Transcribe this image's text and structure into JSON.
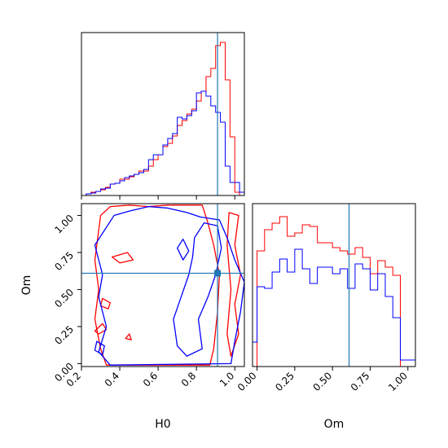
{
  "chart_data": {
    "type": "corner",
    "variables": [
      "H0",
      "Om"
    ],
    "truths": {
      "H0": 0.91,
      "Om": 0.61
    },
    "colors": {
      "run_a": "#ff0000",
      "run_b": "#0000ff",
      "truth": "#1f77b4"
    },
    "panels": [
      {
        "id": "hist_H0",
        "type": "histogram",
        "xlim": [
          0.2,
          1.05
        ],
        "ylim": [
          0,
          1
        ],
        "bin_edges": [
          0.225,
          0.25,
          0.275,
          0.3,
          0.325,
          0.35,
          0.375,
          0.4,
          0.425,
          0.45,
          0.475,
          0.5,
          0.525,
          0.55,
          0.575,
          0.6,
          0.625,
          0.65,
          0.675,
          0.7,
          0.725,
          0.75,
          0.775,
          0.8,
          0.825,
          0.85,
          0.875,
          0.9,
          0.925,
          0.95,
          0.975,
          1.0,
          1.025,
          1.05
        ],
        "series": [
          {
            "name": "run_a",
            "color": "#ff0000",
            "counts": [
              0.01,
              0.02,
              0.025,
              0.035,
              0.05,
              0.07,
              0.075,
              0.1,
              0.1,
              0.115,
              0.13,
              0.15,
              0.15,
              0.18,
              0.22,
              0.25,
              0.3,
              0.32,
              0.365,
              0.43,
              0.46,
              0.5,
              0.53,
              0.58,
              0.64,
              0.73,
              0.78,
              0.92,
              0.94,
              0.71,
              0.36,
              0.02,
              0.0
            ]
          },
          {
            "name": "run_b",
            "color": "#0000ff",
            "counts": [
              0.01,
              0.015,
              0.025,
              0.04,
              0.045,
              0.07,
              0.075,
              0.09,
              0.11,
              0.12,
              0.13,
              0.14,
              0.16,
              0.22,
              0.25,
              0.25,
              0.31,
              0.35,
              0.38,
              0.48,
              0.47,
              0.49,
              0.52,
              0.63,
              0.64,
              0.61,
              0.55,
              0.51,
              0.45,
              0.18,
              0.08,
              0.08,
              0.02
            ]
          }
        ]
      },
      {
        "id": "contour_H0_Om",
        "type": "contour",
        "xlabel": "H0",
        "ylabel": "Om",
        "xlim": [
          0.2,
          1.05
        ],
        "ylim": [
          -0.02,
          1.08
        ],
        "xticks": [
          "0.2",
          "0.4",
          "0.6",
          "0.8",
          "1.0"
        ],
        "yticks": [
          "0.00",
          "0.25",
          "0.50",
          "0.75",
          "1.00"
        ],
        "series": [
          {
            "name": "run_a",
            "color": "#ff0000",
            "contours": [
              [
                [
                  0.3,
                  1.0
                ],
                [
                  0.35,
                  1.06
                ],
                [
                  0.45,
                  1.07
                ],
                [
                  0.55,
                  1.06
                ],
                [
                  0.65,
                  1.07
                ],
                [
                  0.83,
                  1.07
                ],
                [
                  0.86,
                  0.95
                ],
                [
                  0.89,
                  0.8
                ],
                [
                  0.92,
                  0.6
                ],
                [
                  0.91,
                  0.35
                ],
                [
                  0.89,
                  0.1
                ],
                [
                  0.87,
                  -0.01
                ],
                [
                  0.33,
                  -0.01
                ],
                [
                  0.3,
                  0.1
                ],
                [
                  0.27,
                  0.3
                ],
                [
                  0.29,
                  0.5
                ],
                [
                  0.27,
                  0.7
                ],
                [
                  0.29,
                  0.9
                ],
                [
                  0.3,
                  1.0
                ]
              ],
              [
                [
                  0.97,
                  1.02
                ],
                [
                  1.02,
                  1.0
                ],
                [
                  1.0,
                  0.8
                ],
                [
                  1.03,
                  0.6
                ],
                [
                  1.0,
                  0.4
                ],
                [
                  1.02,
                  0.2
                ],
                [
                  0.98,
                  0.05
                ],
                [
                  0.96,
                  0.2
                ],
                [
                  0.98,
                  0.5
                ],
                [
                  0.96,
                  0.8
                ],
                [
                  0.97,
                  1.02
                ]
              ],
              [
                [
                  0.36,
                  0.72
                ],
                [
                  0.44,
                  0.75
                ],
                [
                  0.47,
                  0.7
                ],
                [
                  0.4,
                  0.68
                ],
                [
                  0.36,
                  0.72
                ]
              ],
              [
                [
                  0.31,
                  0.44
                ],
                [
                  0.35,
                  0.41
                ],
                [
                  0.34,
                  0.37
                ],
                [
                  0.3,
                  0.39
                ],
                [
                  0.31,
                  0.44
                ]
              ],
              [
                [
                  0.27,
                  0.22
                ],
                [
                  0.31,
                  0.27
                ],
                [
                  0.33,
                  0.23
                ],
                [
                  0.29,
                  0.2
                ],
                [
                  0.27,
                  0.22
                ]
              ],
              [
                [
                  0.43,
                  0.17
                ],
                [
                  0.45,
                  0.2
                ],
                [
                  0.46,
                  0.16
                ],
                [
                  0.43,
                  0.17
                ]
              ]
            ]
          },
          {
            "name": "run_b",
            "color": "#0000ff",
            "contours": [
              [
                [
                  0.37,
                  1.0
                ],
                [
                  0.45,
                  1.03
                ],
                [
                  0.55,
                  1.06
                ],
                [
                  0.65,
                  1.05
                ],
                [
                  0.75,
                  1.02
                ],
                [
                  0.82,
                  0.99
                ],
                [
                  0.92,
                  0.97
                ],
                [
                  0.96,
                  0.85
                ],
                [
                  1.0,
                  0.7
                ],
                [
                  1.05,
                  0.55
                ],
                [
                  1.03,
                  0.35
                ],
                [
                  1.0,
                  0.15
                ],
                [
                  0.98,
                  0.0
                ],
                [
                  0.35,
                  -0.01
                ],
                [
                  0.29,
                  0.08
                ],
                [
                  0.33,
                  0.25
                ],
                [
                  0.29,
                  0.45
                ],
                [
                  0.31,
                  0.6
                ],
                [
                  0.27,
                  0.8
                ],
                [
                  0.32,
                  0.9
                ],
                [
                  0.37,
                  1.0
                ]
              ],
              [
                [
                  0.84,
                  0.95
                ],
                [
                  0.91,
                  0.93
                ],
                [
                  0.93,
                  0.78
                ],
                [
                  0.9,
                  0.6
                ],
                [
                  0.86,
                  0.45
                ],
                [
                  0.81,
                  0.3
                ],
                [
                  0.83,
                  0.1
                ],
                [
                  0.75,
                  0.05
                ],
                [
                  0.7,
                  0.12
                ],
                [
                  0.68,
                  0.3
                ],
                [
                  0.72,
                  0.45
                ],
                [
                  0.76,
                  0.6
                ],
                [
                  0.78,
                  0.72
                ],
                [
                  0.79,
                  0.85
                ],
                [
                  0.84,
                  0.95
                ]
              ],
              [
                [
                  0.7,
                  0.78
                ],
                [
                  0.73,
                  0.84
                ],
                [
                  0.76,
                  0.76
                ],
                [
                  0.73,
                  0.7
                ],
                [
                  0.7,
                  0.78
                ]
              ],
              [
                [
                  0.28,
                  0.15
                ],
                [
                  0.32,
                  0.12
                ],
                [
                  0.31,
                  0.06
                ],
                [
                  0.27,
                  0.09
                ],
                [
                  0.28,
                  0.15
                ]
              ]
            ]
          }
        ]
      },
      {
        "id": "hist_Om",
        "type": "histogram",
        "xlabel": "Om",
        "xlim": [
          -0.03,
          1.05
        ],
        "ylim": [
          0,
          1
        ],
        "xticks": [
          "0.00",
          "0.25",
          "0.50",
          "0.75",
          "1.00"
        ],
        "bin_edges": [
          -0.03,
          0.0,
          0.05,
          0.1,
          0.15,
          0.2,
          0.25,
          0.3,
          0.35,
          0.4,
          0.45,
          0.5,
          0.55,
          0.6,
          0.65,
          0.7,
          0.75,
          0.8,
          0.85,
          0.9,
          0.95,
          1.0,
          1.05
        ],
        "series": [
          {
            "name": "run_a",
            "color": "#ff0000",
            "counts": [
              0.0,
              0.71,
              0.84,
              0.88,
              0.92,
              0.8,
              0.82,
              0.87,
              0.86,
              0.76,
              0.76,
              0.73,
              0.71,
              0.69,
              0.73,
              0.67,
              0.57,
              0.65,
              0.61,
              0.56,
              0.0,
              0.0
            ]
          },
          {
            "name": "run_b",
            "color": "#0000ff",
            "counts": [
              0.15,
              0.49,
              0.48,
              0.58,
              0.66,
              0.58,
              0.72,
              0.6,
              0.51,
              0.61,
              0.61,
              0.57,
              0.6,
              0.48,
              0.63,
              0.6,
              0.47,
              0.57,
              0.43,
              0.3,
              0.04,
              0.04
            ]
          }
        ]
      }
    ]
  }
}
